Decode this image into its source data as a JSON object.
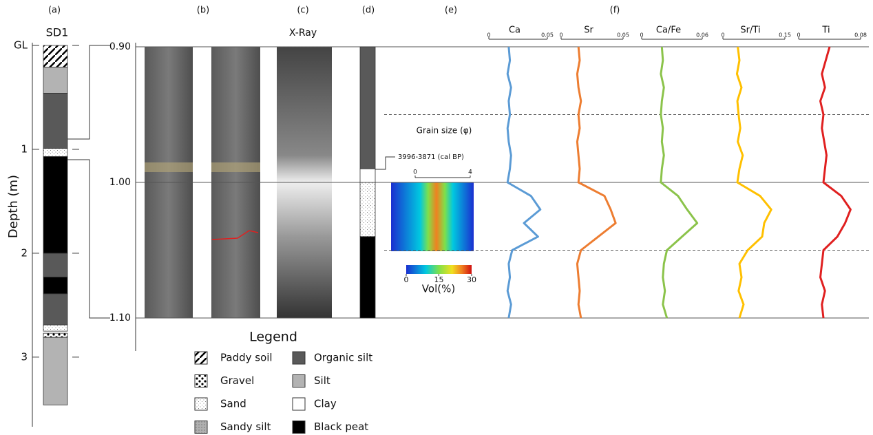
{
  "panel_labels": [
    "(a)",
    "(b)",
    "(c)",
    "(d)",
    "(e)",
    "(f)"
  ],
  "sd1": {
    "title": "SD1",
    "axis_label": "Depth (m)",
    "ylim": [
      0,
      3.67
    ],
    "yticks": [
      {
        "value": 0,
        "label": "GL"
      },
      1,
      2,
      3
    ]
  },
  "detail": {
    "ylim": [
      0.9,
      1.1
    ],
    "yticks": [
      {
        "value": 0.9,
        "label": "0.90"
      },
      {
        "value": 1.0,
        "label": "1.00"
      },
      {
        "value": 1.1,
        "label": "1.10"
      }
    ],
    "dashed": [
      0.95,
      1.05
    ]
  },
  "xray_title": "X-Ray",
  "date_label": "3996-3871 (cal BP)",
  "grain": {
    "title": "Grain size (φ)",
    "xlim": [
      0,
      4
    ],
    "xticks": [
      0,
      4
    ],
    "colorbar_lim": [
      0,
      30
    ],
    "colorbar_ticks": [
      0,
      15,
      30
    ],
    "colorbar_label": "Vol(%)"
  },
  "legend": {
    "title": "Legend",
    "items": [
      {
        "label": "Paddy soil",
        "sd1": [
          [
            0,
            0.21
          ]
        ],
        "core": []
      },
      {
        "label": "Gravel",
        "sd1": [
          [
            2.77,
            2.81
          ]
        ],
        "core": []
      },
      {
        "label": "Sand",
        "sd1": [
          [
            0.99,
            1.07
          ],
          [
            2.69,
            2.75
          ]
        ],
        "core": [
          [
            1.0,
            1.04
          ]
        ]
      },
      {
        "label": "Sandy silt",
        "sd1": [],
        "core": []
      },
      {
        "label": "Organic silt",
        "sd1": [
          [
            0.46,
            0.99
          ],
          [
            2.0,
            2.23
          ],
          [
            2.39,
            2.69
          ]
        ],
        "core": [
          [
            0.9,
            0.99
          ]
        ]
      },
      {
        "label": "Silt",
        "sd1": [
          [
            0.21,
            0.46
          ],
          [
            2.81,
            3.46
          ]
        ],
        "core": []
      },
      {
        "label": "Clay",
        "sd1": [],
        "core": [
          [
            0.99,
            1.0
          ]
        ]
      },
      {
        "label": "Black peat",
        "sd1": [
          [
            1.07,
            2.0
          ],
          [
            2.23,
            2.39
          ]
        ],
        "core": [
          [
            1.04,
            1.1
          ]
        ]
      }
    ]
  },
  "xrf": {
    "depth": [
      0.9,
      0.91,
      0.92,
      0.93,
      0.94,
      0.95,
      0.96,
      0.97,
      0.98,
      0.99,
      1.0,
      1.01,
      1.02,
      1.03,
      1.04,
      1.05,
      1.06,
      1.07,
      1.08,
      1.09,
      1.1
    ],
    "panels": [
      {
        "name": "Ca",
        "color": "#5b9bd5",
        "xlim": [
          0,
          0.05
        ],
        "xticks": [
          0,
          0.05
        ],
        "values": [
          0.017,
          0.018,
          0.016,
          0.019,
          0.017,
          0.018,
          0.016,
          0.017,
          0.019,
          0.018,
          0.016,
          0.036,
          0.044,
          0.03,
          0.042,
          0.02,
          0.017,
          0.018,
          0.016,
          0.019,
          0.017
        ]
      },
      {
        "name": "Sr",
        "color": "#ed7d31",
        "xlim": [
          0,
          0.05
        ],
        "xticks": [
          0,
          0.05
        ],
        "values": [
          0.014,
          0.015,
          0.013,
          0.014,
          0.016,
          0.014,
          0.015,
          0.013,
          0.014,
          0.015,
          0.014,
          0.035,
          0.04,
          0.044,
          0.03,
          0.016,
          0.013,
          0.014,
          0.015,
          0.014,
          0.016
        ]
      },
      {
        "name": "Ca/Fe",
        "color": "#8bc34a",
        "xlim": [
          0,
          0.06
        ],
        "xticks": [
          0,
          0.06
        ],
        "values": [
          0.02,
          0.021,
          0.019,
          0.022,
          0.02,
          0.019,
          0.021,
          0.02,
          0.022,
          0.02,
          0.019,
          0.036,
          0.045,
          0.055,
          0.04,
          0.025,
          0.022,
          0.021,
          0.023,
          0.021,
          0.025
        ]
      },
      {
        "name": "Sr/Ti",
        "color": "#ffc000",
        "xlim": [
          0,
          0.15
        ],
        "xticks": [
          0,
          0.15
        ],
        "values": [
          0.036,
          0.04,
          0.034,
          0.045,
          0.035,
          0.038,
          0.042,
          0.036,
          0.048,
          0.04,
          0.035,
          0.09,
          0.117,
          0.1,
          0.095,
          0.06,
          0.04,
          0.045,
          0.038,
          0.05,
          0.04
        ]
      },
      {
        "name": "Ti",
        "color": "#e02020",
        "xlim": [
          0,
          0.08
        ],
        "xticks": [
          0,
          0.08
        ],
        "values": [
          0.04,
          0.035,
          0.03,
          0.034,
          0.028,
          0.032,
          0.03,
          0.033,
          0.036,
          0.034,
          0.032,
          0.055,
          0.067,
          0.06,
          0.05,
          0.032,
          0.03,
          0.028,
          0.034,
          0.03,
          0.032
        ]
      }
    ]
  }
}
